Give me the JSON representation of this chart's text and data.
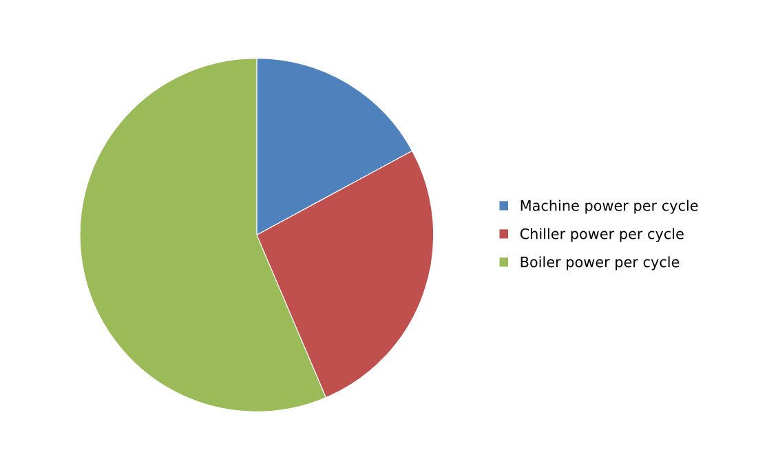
{
  "chart_data": {
    "type": "pie",
    "categories": [
      "Machine power per cycle",
      "Chiller power per cycle",
      "Boiler power per cycle"
    ],
    "values": [
      17.1,
      26.5,
      56.4
    ],
    "colors": [
      "#4f81bd",
      "#c0504d",
      "#9bbb59"
    ],
    "legend": "right"
  }
}
